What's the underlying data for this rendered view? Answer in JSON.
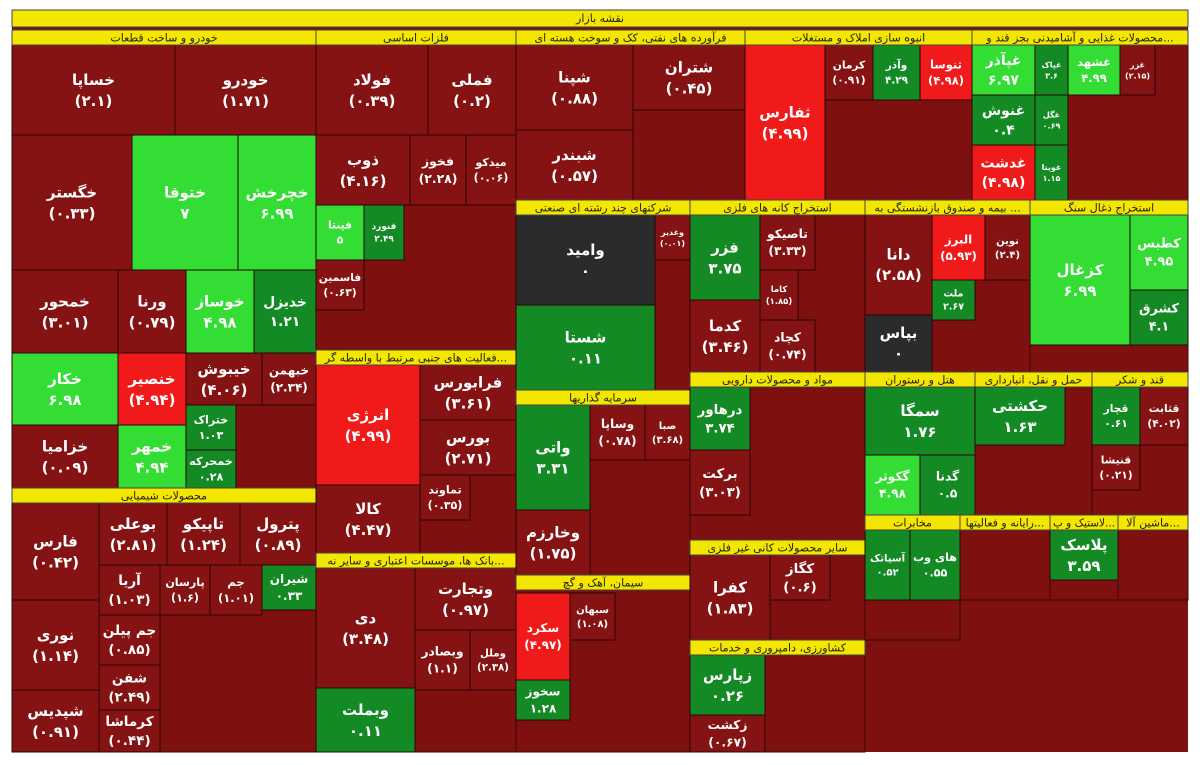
{
  "chart_data": {
    "type": "treemap",
    "title": "نقشه بازار",
    "sectors": [
      {
        "name": "خودرو و ساخت قطعات",
        "tiles": [
          {
            "name": "خساپا",
            "value": -2.1,
            "value_label": "(۲.۱)"
          },
          {
            "name": "خودرو",
            "value": -1.71,
            "value_label": "(۱.۷۱)"
          },
          {
            "name": "خگستر",
            "value": -0.33,
            "value_label": "(۰.۳۳)"
          },
          {
            "name": "ختوقا",
            "value": 7,
            "value_label": "۷"
          },
          {
            "name": "خچرخش",
            "value": 6.99,
            "value_label": "۶.۹۹"
          },
          {
            "name": "خمحور",
            "value": -3.01,
            "value_label": "(۳.۰۱)"
          },
          {
            "name": "ورنا",
            "value": -0.79,
            "value_label": "(۰.۷۹)"
          },
          {
            "name": "خوساز",
            "value": 4.98,
            "value_label": "۴.۹۸"
          },
          {
            "name": "خدیزل",
            "value": 1.21,
            "value_label": "۱.۲۱"
          },
          {
            "name": "خکار",
            "value": 6.98,
            "value_label": "۶.۹۸"
          },
          {
            "name": "خزامیا",
            "value": -0.09,
            "value_label": "(۰.۰۹)"
          },
          {
            "name": "خنصیر",
            "value": -4.94,
            "value_label": "(۴.۹۴)"
          },
          {
            "name": "خمهر",
            "value": 4.94,
            "value_label": "۴.۹۴"
          },
          {
            "name": "خیبوش",
            "value": -4.06,
            "value_label": "(۴.۰۶)"
          },
          {
            "name": "خبهمن",
            "value": -2.34,
            "value_label": "(۲.۳۴)"
          },
          {
            "name": "ختراک",
            "value": 1.03,
            "value_label": "۱.۰۳"
          },
          {
            "name": "خمحرکه",
            "value": 0.28,
            "value_label": "۰.۲۸"
          }
        ]
      },
      {
        "name": "محصولات شیمیایی",
        "tiles": [
          {
            "name": "فارس",
            "value": -0.42,
            "value_label": "(۰.۴۲)"
          },
          {
            "name": "بوعلی",
            "value": -2.81,
            "value_label": "(۲.۸۱)"
          },
          {
            "name": "تاپیکو",
            "value": -1.24,
            "value_label": "(۱.۲۴)"
          },
          {
            "name": "پترول",
            "value": -0.89,
            "value_label": "(۰.۸۹)"
          },
          {
            "name": "آریا",
            "value": -1.03,
            "value_label": "(۱.۰۳)"
          },
          {
            "name": "پارسان",
            "value": -1.6,
            "value_label": "(۱.۶)"
          },
          {
            "name": "جم",
            "value": -1.01,
            "value_label": "(۱.۰۱)"
          },
          {
            "name": "شیران",
            "value": 0.33,
            "value_label": "۰.۳۳"
          },
          {
            "name": "نوری",
            "value": -1.14,
            "value_label": "(۱.۱۴)"
          },
          {
            "name": "شپدیس",
            "value": -0.91,
            "value_label": "(۰.۹۱)"
          },
          {
            "name": "جم پیلن",
            "value": -0.85,
            "value_label": "(۰.۸۵)"
          },
          {
            "name": "شفن",
            "value": -2.49,
            "value_label": "(۲.۴۹)"
          },
          {
            "name": "کرماشا",
            "value": -0.44,
            "value_label": "(۰.۴۴)"
          }
        ]
      },
      {
        "name": "فلزات اساسی",
        "tiles": [
          {
            "name": "فولاد",
            "value": -0.39,
            "value_label": "(۰.۳۹)"
          },
          {
            "name": "فملی",
            "value": -0.2,
            "value_label": "(۰.۲)"
          },
          {
            "name": "ذوب",
            "value": -4.16,
            "value_label": "(۴.۱۶)"
          },
          {
            "name": "فخوز",
            "value": -2.28,
            "value_label": "(۲.۲۸)"
          },
          {
            "name": "میدکو",
            "value": -0.06,
            "value_label": "(۰.۰۶)"
          },
          {
            "name": "فپنتا",
            "value": 5,
            "value_label": "۵"
          },
          {
            "name": "فنورد",
            "value": 2.49,
            "value_label": "۲.۴۹"
          },
          {
            "name": "فاسمین",
            "value": -0.63,
            "value_label": "(۰.۶۳)"
          }
        ]
      },
      {
        "name": "فعالیت های جنبی مرتبط با واسطه گر...",
        "tiles": [
          {
            "name": "انرژی",
            "value": -4.99,
            "value_label": "(۴.۹۹)"
          },
          {
            "name": "فرابورس",
            "value": -3.61,
            "value_label": "(۳.۶۱)"
          },
          {
            "name": "بورس",
            "value": -2.71,
            "value_label": "(۲.۷۱)"
          },
          {
            "name": "تماوند",
            "value": -0.35,
            "value_label": "(۰.۳۵)"
          },
          {
            "name": "کالا",
            "value": -4.47,
            "value_label": "(۴.۴۷)"
          }
        ]
      },
      {
        "name": "بانک ها، موسسات اعتباری و سایر نه...",
        "tiles": [
          {
            "name": "دی",
            "value": -3.48,
            "value_label": "(۳.۴۸)"
          },
          {
            "name": "وتجارت",
            "value": -0.97,
            "value_label": "(۰.۹۷)"
          },
          {
            "name": "وبصادر",
            "value": -1.1,
            "value_label": "(۱.۱)"
          },
          {
            "name": "وملل",
            "value": -2.38,
            "value_label": "(۲.۳۸)"
          },
          {
            "name": "وبملت",
            "value": 0.11,
            "value_label": "۰.۱۱"
          }
        ]
      },
      {
        "name": "فرآورده های نفتی، کک و سوخت هسته ای",
        "tiles": [
          {
            "name": "شپنا",
            "value": -0.88,
            "value_label": "(۰.۸۸)"
          },
          {
            "name": "شتران",
            "value": -0.45,
            "value_label": "(۰.۴۵)"
          },
          {
            "name": "شبندر",
            "value": -0.57,
            "value_label": "(۰.۵۷)"
          }
        ]
      },
      {
        "name": "انبوه سازی املاک و مستغلات",
        "tiles": [
          {
            "name": "ثفارس",
            "value": -4.99,
            "value_label": "(۴.۹۹)"
          },
          {
            "name": "کرمان",
            "value": -0.91,
            "value_label": "(۰.۹۱)"
          },
          {
            "name": "وآذر",
            "value": 4.29,
            "value_label": "۴.۲۹"
          },
          {
            "name": "ثنوسا",
            "value": -4.98,
            "value_label": "(۴.۹۸)"
          }
        ]
      },
      {
        "name": "محصولات غذایی و آشامیدنی بجز قند و...",
        "tiles": [
          {
            "name": "غپآذر",
            "value": 6.97,
            "value_label": "۶.۹۷"
          },
          {
            "name": "غپاک",
            "value": 3.6,
            "value_label": "۳.۶"
          },
          {
            "name": "غشهد",
            "value": 4.99,
            "value_label": "۴.۹۹"
          },
          {
            "name": "غزر",
            "value": -2.15,
            "value_label": "(۲.۱۵)"
          },
          {
            "name": "غنوش",
            "value": 0.4,
            "value_label": "۰.۴"
          },
          {
            "name": "غگل",
            "value": 0.69,
            "value_label": "۰.۶۹"
          },
          {
            "name": "غدشت",
            "value": -4.98,
            "value_label": "(۴.۹۸)"
          },
          {
            "name": "غویتا",
            "value": 1.15,
            "value_label": "۱.۱۵"
          }
        ]
      },
      {
        "name": "شرکتهای چند رشته ای صنعتی",
        "tiles": [
          {
            "name": "وامید",
            "value": 0,
            "value_label": "۰"
          },
          {
            "name": "شستا",
            "value": 0.11,
            "value_label": "۰.۱۱"
          },
          {
            "name": "وغدیر",
            "value": -0.01,
            "value_label": "(۰.۰۱)"
          }
        ]
      },
      {
        "name": "استخراج کانه های فلزی",
        "tiles": [
          {
            "name": "فزر",
            "value": 3.75,
            "value_label": "۳.۷۵"
          },
          {
            "name": "تاصیکو",
            "value": -3.33,
            "value_label": "(۳.۳۳)"
          },
          {
            "name": "کاما",
            "value": -1.85,
            "value_label": "(۱.۸۵)"
          },
          {
            "name": "کدما",
            "value": -3.46,
            "value_label": "(۳.۴۶)"
          },
          {
            "name": "کچاد",
            "value": -0.74,
            "value_label": "(۰.۷۴)"
          }
        ]
      },
      {
        "name": "بیمه و صندوق بازنشستگی به ...",
        "tiles": [
          {
            "name": "دانا",
            "value": -2.58,
            "value_label": "(۲.۵۸)"
          },
          {
            "name": "البرز",
            "value": -5.93,
            "value_label": "(۵.۹۳)"
          },
          {
            "name": "نوین",
            "value": -2.4,
            "value_label": "(۲.۴)"
          },
          {
            "name": "ملت",
            "value": 2.67,
            "value_label": "۲.۶۷"
          },
          {
            "name": "بپاس",
            "value": 0,
            "value_label": "۰"
          }
        ]
      },
      {
        "name": "استخراج ذغال سنگ",
        "tiles": [
          {
            "name": "کزغال",
            "value": 6.99,
            "value_label": "۶.۹۹"
          },
          {
            "name": "کطبس",
            "value": 4.95,
            "value_label": "۴.۹۵"
          },
          {
            "name": "کشرق",
            "value": 4.1,
            "value_label": "۴.۱"
          }
        ]
      },
      {
        "name": "سرمایه گذاریها",
        "tiles": [
          {
            "name": "واتی",
            "value": 3.31,
            "value_label": "۳.۳۱"
          },
          {
            "name": "وساپا",
            "value": -0.78,
            "value_label": "(۰.۷۸)"
          },
          {
            "name": "صبا",
            "value": -3.68,
            "value_label": "(۳.۶۸)"
          },
          {
            "name": "وخارزم",
            "value": -1.75,
            "value_label": "(۱.۷۵)"
          }
        ]
      },
      {
        "name": "مواد و محصولات دارویی",
        "tiles": [
          {
            "name": "درهاور",
            "value": 3.74,
            "value_label": "۳.۷۴"
          },
          {
            "name": "برکت",
            "value": -3.03,
            "value_label": "(۳.۰۳)"
          }
        ]
      },
      {
        "name": "هتل و رستوران",
        "tiles": [
          {
            "name": "سمگا",
            "value": 1.76,
            "value_label": "۱.۷۶"
          },
          {
            "name": "گکوثر",
            "value": 4.98,
            "value_label": "۴.۹۸"
          },
          {
            "name": "گدنا",
            "value": 0.5,
            "value_label": "۰.۵"
          }
        ]
      },
      {
        "name": "حمل و نقل، انبارداری",
        "tiles": [
          {
            "name": "حکشتی",
            "value": 1.63,
            "value_label": "۱.۶۳"
          }
        ]
      },
      {
        "name": "قند و شکر",
        "tiles": [
          {
            "name": "قچار",
            "value": 0.61,
            "value_label": "۰.۶۱"
          },
          {
            "name": "قثابت",
            "value": -4.02,
            "value_label": "(۴.۰۲)"
          },
          {
            "name": "قنیشا",
            "value": -0.21,
            "value_label": "(۰.۲۱)"
          }
        ]
      },
      {
        "name": "سیمان، آهک و گچ",
        "tiles": [
          {
            "name": "سکرد",
            "value": -4.97,
            "value_label": "(۴.۹۷)"
          },
          {
            "name": "سبهان",
            "value": -1.08,
            "value_label": "(۱.۰۸)"
          },
          {
            "name": "سخوز",
            "value": 1.28,
            "value_label": "۱.۲۸"
          }
        ]
      },
      {
        "name": "سایر محصولات کانی غیر فلزی",
        "tiles": [
          {
            "name": "کفرا",
            "value": -1.83,
            "value_label": "(۱.۸۳)"
          },
          {
            "name": "کگاز",
            "value": -0.6,
            "value_label": "(۰.۶)"
          }
        ]
      },
      {
        "name": "کشاورزی، دامپروری و خدمات",
        "tiles": [
          {
            "name": "زپارس",
            "value": 0.26,
            "value_label": "۰.۲۶"
          },
          {
            "name": "زکشت",
            "value": -0.67,
            "value_label": "(۰.۶۷)"
          }
        ]
      },
      {
        "name": "مخابرات",
        "tiles": [
          {
            "name": "آسیاتک",
            "value": 0.52,
            "value_label": "۰.۵۲"
          },
          {
            "name": "های وب",
            "value": 0.55,
            "value_label": "۰.۵۵"
          }
        ]
      },
      {
        "name": "رایانه و فعالیتها...",
        "tiles": []
      },
      {
        "name": "لاستیک و پ...",
        "tiles": [
          {
            "name": "پلاسک",
            "value": 3.59,
            "value_label": "۳.۵۹"
          }
        ]
      },
      {
        "name": "ماشین آلا...",
        "tiles": []
      }
    ]
  }
}
